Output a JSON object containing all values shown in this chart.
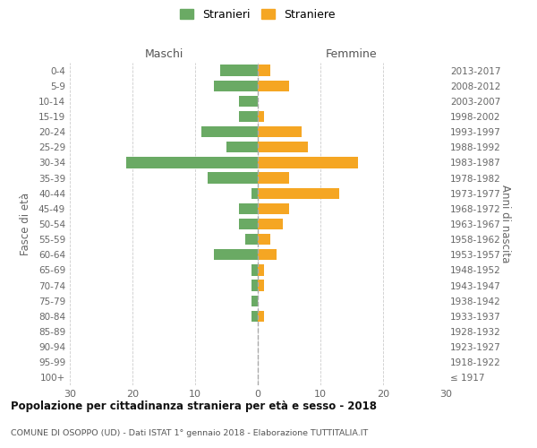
{
  "age_groups": [
    "0-4",
    "5-9",
    "10-14",
    "15-19",
    "20-24",
    "25-29",
    "30-34",
    "35-39",
    "40-44",
    "45-49",
    "50-54",
    "55-59",
    "60-64",
    "65-69",
    "70-74",
    "75-79",
    "80-84",
    "85-89",
    "90-94",
    "95-99",
    "100+"
  ],
  "birth_years": [
    "2013-2017",
    "2008-2012",
    "2003-2007",
    "1998-2002",
    "1993-1997",
    "1988-1992",
    "1983-1987",
    "1978-1982",
    "1973-1977",
    "1968-1972",
    "1963-1967",
    "1958-1962",
    "1953-1957",
    "1948-1952",
    "1943-1947",
    "1938-1942",
    "1933-1937",
    "1928-1932",
    "1923-1927",
    "1918-1922",
    "≤ 1917"
  ],
  "maschi": [
    6,
    7,
    3,
    3,
    9,
    5,
    21,
    8,
    1,
    3,
    3,
    2,
    7,
    1,
    1,
    1,
    1,
    0,
    0,
    0,
    0
  ],
  "femmine": [
    2,
    5,
    0,
    1,
    7,
    8,
    16,
    5,
    13,
    5,
    4,
    2,
    3,
    1,
    1,
    0,
    1,
    0,
    0,
    0,
    0
  ],
  "color_maschi": "#6aaa64",
  "color_femmine": "#f5a623",
  "xlim": 30,
  "title": "Popolazione per cittadinanza straniera per età e sesso - 2018",
  "subtitle": "COMUNE DI OSOPPO (UD) - Dati ISTAT 1° gennaio 2018 - Elaborazione TUTTITALIA.IT",
  "ylabel_left": "Fasce di età",
  "ylabel_right": "Anni di nascita",
  "legend_stranieri": "Stranieri",
  "legend_straniere": "Straniere",
  "maschi_label": "Maschi",
  "femmine_label": "Femmine",
  "background_color": "#ffffff",
  "grid_color": "#cccccc"
}
